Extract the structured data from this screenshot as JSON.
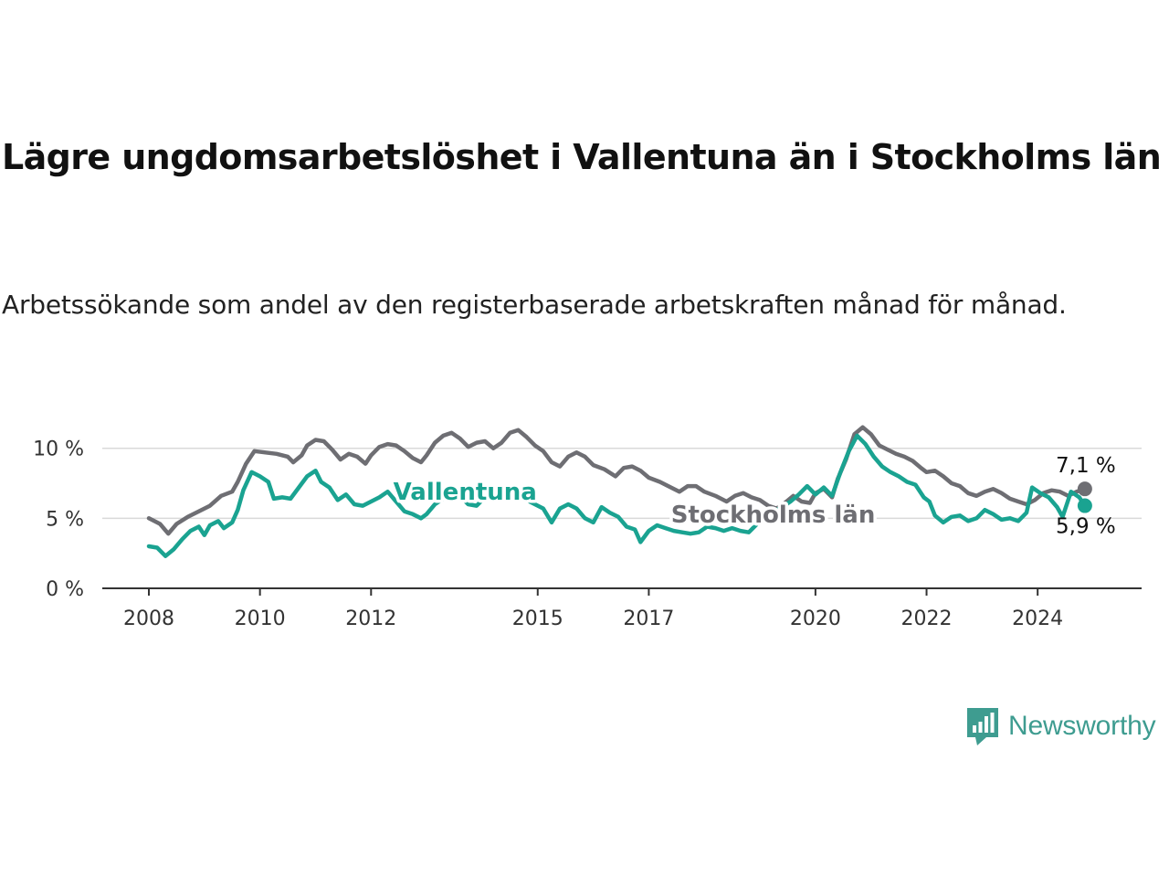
{
  "title": "Lägre ungdomsarbetslöshet i Vallentuna än i Stockholms län",
  "subtitle": "Arbetssökande som andel av den registerbaserade arbetskraften månad för månad.",
  "brand": {
    "name": "Newsworthy",
    "color": "#3e9c90"
  },
  "chart_data": {
    "type": "line",
    "ylim": [
      0,
      12
    ],
    "xlim": [
      2008.0,
      2025.0
    ],
    "y_ticks": [
      {
        "value": 0,
        "label": "0 %"
      },
      {
        "value": 5,
        "label": "5 %"
      },
      {
        "value": 10,
        "label": "10 %"
      }
    ],
    "x_ticks": [
      {
        "value": 2008.0,
        "label": "2008"
      },
      {
        "value": 2010.0,
        "label": "2010"
      },
      {
        "value": 2012.0,
        "label": "2012"
      },
      {
        "value": 2015.0,
        "label": "2015"
      },
      {
        "value": 2017.0,
        "label": "2017"
      },
      {
        "value": 2020.0,
        "label": "2020"
      },
      {
        "value": 2022.0,
        "label": "2022"
      },
      {
        "value": 2024.0,
        "label": "2024"
      }
    ],
    "grid": "horizontal",
    "series": [
      {
        "name": "Stockholms län",
        "color": "#6e6e73",
        "end_label": "7,1 %",
        "points": [
          [
            2008.0,
            5.0
          ],
          [
            2008.2,
            4.6
          ],
          [
            2008.35,
            3.9
          ],
          [
            2008.5,
            4.6
          ],
          [
            2008.7,
            5.1
          ],
          [
            2008.9,
            5.5
          ],
          [
            2009.1,
            5.9
          ],
          [
            2009.3,
            6.6
          ],
          [
            2009.5,
            6.9
          ],
          [
            2009.6,
            7.6
          ],
          [
            2009.75,
            8.9
          ],
          [
            2009.9,
            9.8
          ],
          [
            2010.1,
            9.7
          ],
          [
            2010.3,
            9.6
          ],
          [
            2010.5,
            9.4
          ],
          [
            2010.6,
            9.0
          ],
          [
            2010.75,
            9.5
          ],
          [
            2010.85,
            10.2
          ],
          [
            2011.0,
            10.6
          ],
          [
            2011.15,
            10.5
          ],
          [
            2011.3,
            9.9
          ],
          [
            2011.45,
            9.2
          ],
          [
            2011.6,
            9.6
          ],
          [
            2011.75,
            9.4
          ],
          [
            2011.9,
            8.9
          ],
          [
            2012.0,
            9.5
          ],
          [
            2012.15,
            10.1
          ],
          [
            2012.3,
            10.3
          ],
          [
            2012.45,
            10.2
          ],
          [
            2012.6,
            9.8
          ],
          [
            2012.75,
            9.3
          ],
          [
            2012.9,
            9.0
          ],
          [
            2013.0,
            9.5
          ],
          [
            2013.15,
            10.4
          ],
          [
            2013.3,
            10.9
          ],
          [
            2013.45,
            11.1
          ],
          [
            2013.6,
            10.7
          ],
          [
            2013.75,
            10.1
          ],
          [
            2013.9,
            10.4
          ],
          [
            2014.05,
            10.5
          ],
          [
            2014.2,
            10.0
          ],
          [
            2014.35,
            10.4
          ],
          [
            2014.5,
            11.1
          ],
          [
            2014.65,
            11.3
          ],
          [
            2014.8,
            10.8
          ],
          [
            2014.95,
            10.2
          ],
          [
            2015.1,
            9.8
          ],
          [
            2015.25,
            9.0
          ],
          [
            2015.4,
            8.7
          ],
          [
            2015.55,
            9.4
          ],
          [
            2015.7,
            9.7
          ],
          [
            2015.85,
            9.4
          ],
          [
            2016.0,
            8.8
          ],
          [
            2016.2,
            8.5
          ],
          [
            2016.4,
            8.0
          ],
          [
            2016.55,
            8.6
          ],
          [
            2016.7,
            8.7
          ],
          [
            2016.85,
            8.4
          ],
          [
            2017.0,
            7.9
          ],
          [
            2017.2,
            7.6
          ],
          [
            2017.4,
            7.2
          ],
          [
            2017.55,
            6.9
          ],
          [
            2017.7,
            7.3
          ],
          [
            2017.85,
            7.3
          ],
          [
            2018.0,
            6.9
          ],
          [
            2018.2,
            6.6
          ],
          [
            2018.4,
            6.2
          ],
          [
            2018.55,
            6.6
          ],
          [
            2018.7,
            6.8
          ],
          [
            2018.85,
            6.5
          ],
          [
            2019.0,
            6.3
          ],
          [
            2019.15,
            5.9
          ],
          [
            2019.3,
            5.7
          ],
          [
            2019.45,
            6.1
          ],
          [
            2019.6,
            6.6
          ],
          [
            2019.75,
            6.2
          ],
          [
            2019.9,
            6.1
          ],
          [
            2020.0,
            6.8
          ],
          [
            2020.15,
            7.1
          ],
          [
            2020.3,
            6.5
          ],
          [
            2020.4,
            7.8
          ],
          [
            2020.55,
            9.2
          ],
          [
            2020.7,
            11.0
          ],
          [
            2020.85,
            11.5
          ],
          [
            2021.0,
            11.0
          ],
          [
            2021.15,
            10.2
          ],
          [
            2021.3,
            9.9
          ],
          [
            2021.45,
            9.6
          ],
          [
            2021.6,
            9.4
          ],
          [
            2021.75,
            9.1
          ],
          [
            2021.9,
            8.6
          ],
          [
            2022.0,
            8.3
          ],
          [
            2022.15,
            8.4
          ],
          [
            2022.3,
            8.0
          ],
          [
            2022.45,
            7.5
          ],
          [
            2022.6,
            7.3
          ],
          [
            2022.75,
            6.8
          ],
          [
            2022.9,
            6.6
          ],
          [
            2023.05,
            6.9
          ],
          [
            2023.2,
            7.1
          ],
          [
            2023.35,
            6.8
          ],
          [
            2023.5,
            6.4
          ],
          [
            2023.65,
            6.2
          ],
          [
            2023.8,
            6.0
          ],
          [
            2023.95,
            6.3
          ],
          [
            2024.1,
            6.8
          ],
          [
            2024.25,
            7.0
          ],
          [
            2024.4,
            6.9
          ],
          [
            2024.55,
            6.6
          ],
          [
            2024.7,
            6.9
          ],
          [
            2024.85,
            7.1
          ]
        ]
      },
      {
        "name": "Vallentuna",
        "color": "#1aa391",
        "end_label": "5,9 %",
        "points": [
          [
            2008.0,
            3.0
          ],
          [
            2008.15,
            2.9
          ],
          [
            2008.3,
            2.3
          ],
          [
            2008.45,
            2.8
          ],
          [
            2008.6,
            3.5
          ],
          [
            2008.75,
            4.1
          ],
          [
            2008.9,
            4.4
          ],
          [
            2009.0,
            3.8
          ],
          [
            2009.1,
            4.5
          ],
          [
            2009.25,
            4.8
          ],
          [
            2009.35,
            4.3
          ],
          [
            2009.5,
            4.7
          ],
          [
            2009.6,
            5.6
          ],
          [
            2009.7,
            7.0
          ],
          [
            2009.85,
            8.3
          ],
          [
            2010.0,
            8.0
          ],
          [
            2010.15,
            7.6
          ],
          [
            2010.25,
            6.4
          ],
          [
            2010.4,
            6.5
          ],
          [
            2010.55,
            6.4
          ],
          [
            2010.7,
            7.2
          ],
          [
            2010.85,
            8.0
          ],
          [
            2011.0,
            8.4
          ],
          [
            2011.1,
            7.6
          ],
          [
            2011.25,
            7.2
          ],
          [
            2011.4,
            6.3
          ],
          [
            2011.55,
            6.7
          ],
          [
            2011.7,
            6.0
          ],
          [
            2011.85,
            5.9
          ],
          [
            2012.0,
            6.2
          ],
          [
            2012.15,
            6.5
          ],
          [
            2012.3,
            6.9
          ],
          [
            2012.45,
            6.2
          ],
          [
            2012.6,
            5.5
          ],
          [
            2012.75,
            5.3
          ],
          [
            2012.9,
            5.0
          ],
          [
            2013.0,
            5.3
          ],
          [
            2013.15,
            6.0
          ],
          [
            2013.3,
            6.4
          ],
          [
            2013.45,
            6.8
          ],
          [
            2013.6,
            6.6
          ],
          [
            2013.75,
            6.0
          ],
          [
            2013.9,
            5.9
          ],
          [
            2014.05,
            6.5
          ],
          [
            2014.2,
            7.0
          ],
          [
            2014.35,
            6.6
          ],
          [
            2014.5,
            6.8
          ],
          [
            2014.65,
            6.4
          ],
          [
            2014.8,
            6.3
          ],
          [
            2014.95,
            6.0
          ],
          [
            2015.1,
            5.7
          ],
          [
            2015.25,
            4.7
          ],
          [
            2015.4,
            5.7
          ],
          [
            2015.55,
            6.0
          ],
          [
            2015.7,
            5.7
          ],
          [
            2015.85,
            5.0
          ],
          [
            2016.0,
            4.7
          ],
          [
            2016.15,
            5.8
          ],
          [
            2016.3,
            5.4
          ],
          [
            2016.45,
            5.1
          ],
          [
            2016.6,
            4.4
          ],
          [
            2016.75,
            4.2
          ],
          [
            2016.85,
            3.3
          ],
          [
            2017.0,
            4.1
          ],
          [
            2017.15,
            4.5
          ],
          [
            2017.3,
            4.3
          ],
          [
            2017.45,
            4.1
          ],
          [
            2017.6,
            4.0
          ],
          [
            2017.75,
            3.9
          ],
          [
            2017.9,
            4.0
          ],
          [
            2018.05,
            4.4
          ],
          [
            2018.2,
            4.3
          ],
          [
            2018.35,
            4.1
          ],
          [
            2018.5,
            4.3
          ],
          [
            2018.65,
            4.1
          ],
          [
            2018.8,
            4.0
          ],
          [
            2018.95,
            4.6
          ],
          [
            2019.1,
            5.4
          ],
          [
            2019.25,
            5.5
          ],
          [
            2019.4,
            5.8
          ],
          [
            2019.55,
            6.2
          ],
          [
            2019.7,
            6.7
          ],
          [
            2019.85,
            7.3
          ],
          [
            2020.0,
            6.7
          ],
          [
            2020.15,
            7.2
          ],
          [
            2020.3,
            6.6
          ],
          [
            2020.45,
            8.3
          ],
          [
            2020.6,
            9.8
          ],
          [
            2020.75,
            10.9
          ],
          [
            2020.9,
            10.3
          ],
          [
            2021.05,
            9.4
          ],
          [
            2021.2,
            8.7
          ],
          [
            2021.35,
            8.3
          ],
          [
            2021.5,
            8.0
          ],
          [
            2021.65,
            7.6
          ],
          [
            2021.8,
            7.4
          ],
          [
            2021.95,
            6.5
          ],
          [
            2022.05,
            6.2
          ],
          [
            2022.15,
            5.2
          ],
          [
            2022.3,
            4.7
          ],
          [
            2022.45,
            5.1
          ],
          [
            2022.6,
            5.2
          ],
          [
            2022.75,
            4.8
          ],
          [
            2022.9,
            5.0
          ],
          [
            2023.05,
            5.6
          ],
          [
            2023.2,
            5.3
          ],
          [
            2023.35,
            4.9
          ],
          [
            2023.5,
            5.0
          ],
          [
            2023.65,
            4.8
          ],
          [
            2023.8,
            5.4
          ],
          [
            2023.9,
            7.2
          ],
          [
            2024.05,
            6.8
          ],
          [
            2024.2,
            6.5
          ],
          [
            2024.35,
            5.8
          ],
          [
            2024.45,
            5.1
          ],
          [
            2024.6,
            6.9
          ],
          [
            2024.75,
            6.5
          ],
          [
            2024.85,
            5.9
          ]
        ]
      }
    ],
    "annotations": [
      {
        "text": "Vallentuna",
        "series": 1,
        "x": 2012.4,
        "y": 6.9
      },
      {
        "text": "Stockholms län",
        "series": 0,
        "x": 2017.4,
        "y": 5.3
      }
    ]
  }
}
